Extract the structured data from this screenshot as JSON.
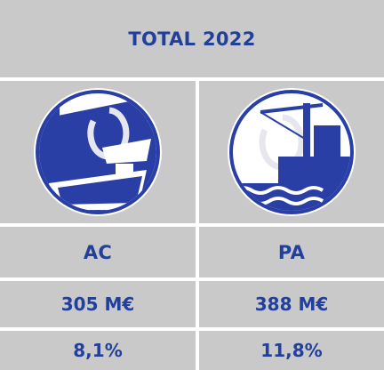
{
  "header": {
    "title": "TOTAL 2022"
  },
  "columns": [
    {
      "label": "AC",
      "value": "305 M€",
      "percent": "8,1%"
    },
    {
      "label": "PA",
      "value": "388 M€",
      "percent": "11,8%"
    }
  ]
}
